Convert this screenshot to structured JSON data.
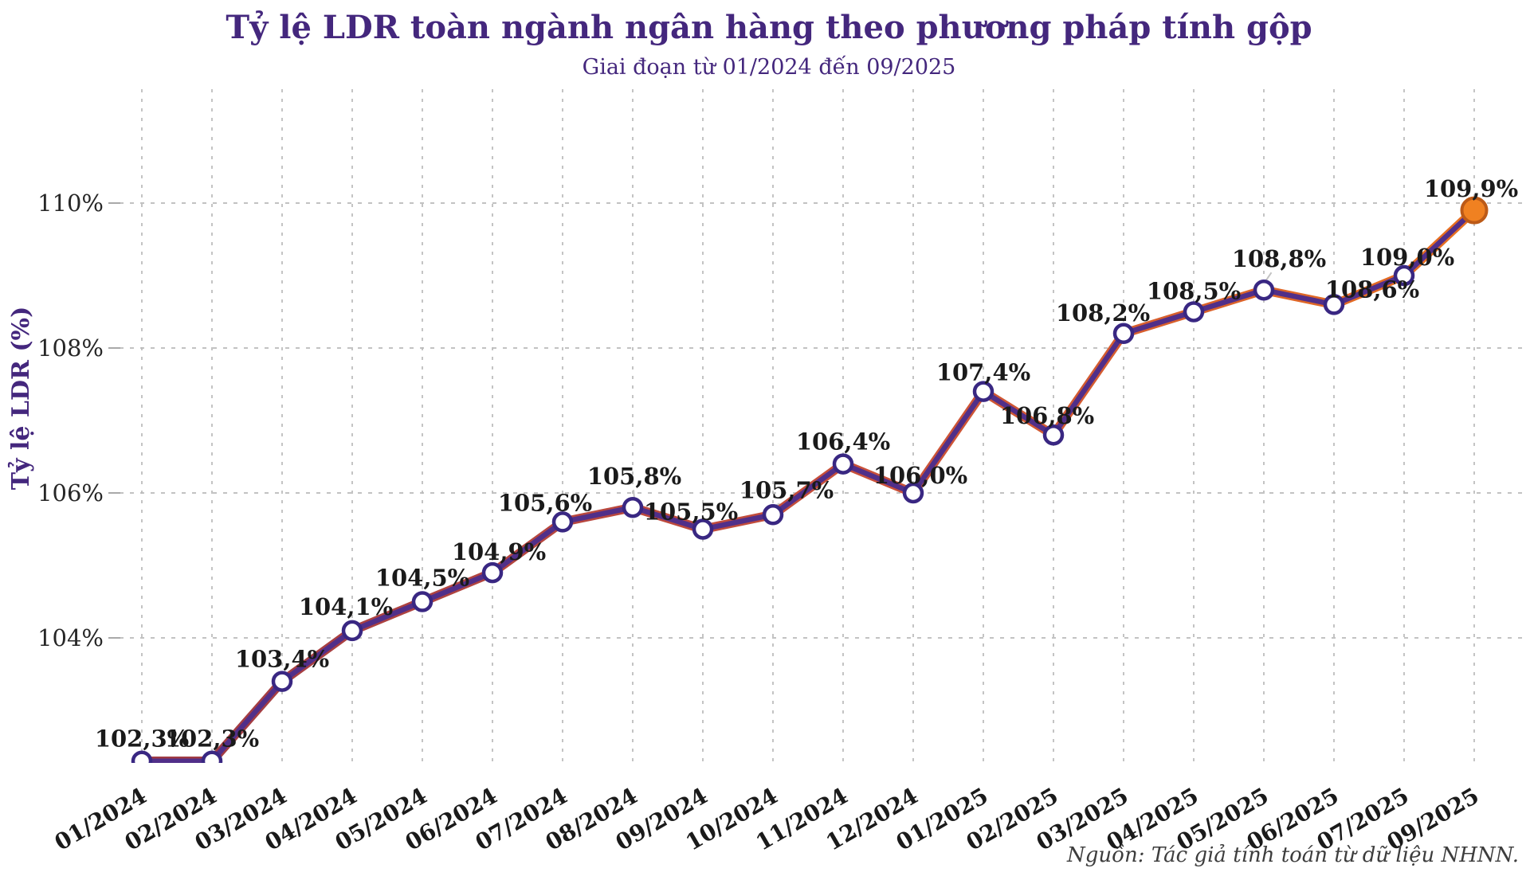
{
  "page": {
    "title": "Tỷ lệ LDR toàn ngành ngân hàng theo phương pháp tính gộp",
    "subtitle": "Giai đoạn từ 01/2024 đến 09/2025",
    "source_note": "Nguồn: Tác giả tính toán từ dữ liệu NHNN."
  },
  "chart_data": {
    "type": "line",
    "title": "Tỷ lệ LDR toàn ngành ngân hàng theo phương pháp tính gộp",
    "subtitle": "Giai đoạn từ 01/2024 đến 09/2025",
    "ylabel": "Tỷ lệ LDR (%)",
    "xlabel": "",
    "categories": [
      "01/2024",
      "02/2024",
      "03/2024",
      "04/2024",
      "05/2024",
      "06/2024",
      "07/2024",
      "08/2024",
      "09/2024",
      "10/2024",
      "11/2024",
      "12/2024",
      "01/2025",
      "02/2025",
      "03/2025",
      "04/2025",
      "05/2025",
      "06/2025",
      "07/2025",
      "09/2025"
    ],
    "values": [
      102.3,
      102.3,
      103.4,
      104.1,
      104.5,
      104.9,
      105.6,
      105.8,
      105.5,
      105.7,
      106.4,
      106.0,
      107.4,
      106.8,
      108.2,
      108.5,
      108.8,
      108.6,
      109.0,
      109.9
    ],
    "data_labels": [
      "102,3%",
      "102,3%",
      "103,4%",
      "104,1%",
      "104,5%",
      "104,9%",
      "105,6%",
      "105,8%",
      "105,5%",
      "105,7%",
      "106,4%",
      "106,0%",
      "107,4%",
      "106,8%",
      "108,2%",
      "108,5%",
      "108,8%",
      "108,6%",
      "109,0%",
      "109,9%"
    ],
    "label_offsets": [
      [
        0,
        -18,
        0
      ],
      [
        0,
        -18,
        0
      ],
      [
        0,
        -18,
        0
      ],
      [
        -8,
        -20,
        0
      ],
      [
        0,
        -20,
        0
      ],
      [
        8,
        -16,
        1
      ],
      [
        -22,
        -14,
        0
      ],
      [
        2,
        -29,
        1
      ],
      [
        -15,
        -12,
        0
      ],
      [
        17,
        -21,
        1
      ],
      [
        0,
        -18,
        0
      ],
      [
        9,
        -12,
        0
      ],
      [
        0,
        -14,
        0
      ],
      [
        -8,
        -14,
        0
      ],
      [
        -26,
        -16,
        0
      ],
      [
        0,
        -16,
        0
      ],
      [
        19,
        -29,
        1
      ],
      [
        48,
        -9,
        0
      ],
      [
        4,
        -13,
        0
      ],
      [
        -4,
        -17,
        0
      ]
    ],
    "yticks": {
      "values": [
        104,
        106,
        108,
        110
      ],
      "labels": [
        "104%",
        "106%",
        "108%",
        "110%"
      ]
    },
    "ylim": [
      102.3,
      111.6
    ],
    "grid": true,
    "legend": false,
    "source": "Nguồn: Tác giả tính toán từ dữ liệu NHNN.",
    "colors": {
      "title": "#44277D",
      "subtitle": "#44277D",
      "y_axis_title": "#44277D",
      "line_core": "#512F89",
      "line_edge_left": "#9E3A44",
      "line_edge_mid": "#C9503A",
      "line_edge_right": "#E8701F",
      "marker_fill": "#ffffff",
      "marker_border": "#392782",
      "last_marker_fill": "#F08121",
      "last_marker_border": "#BC5A17",
      "grid": "#b9b9b9",
      "tick": "#a9a9a9",
      "leader": "#c3c3c3",
      "data_label_text": "#1a1a1a",
      "axis_tick_text": "#262626",
      "source_text": "#3d3d3d"
    }
  }
}
